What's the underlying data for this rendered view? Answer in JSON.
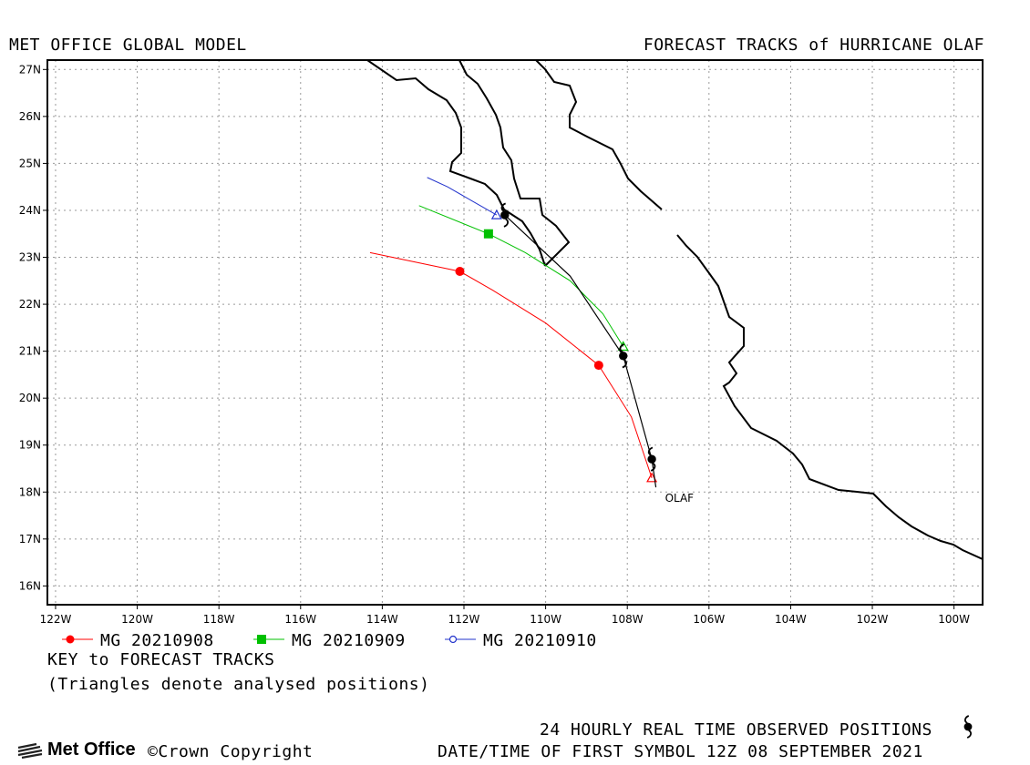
{
  "header": {
    "left_title": "MET OFFICE GLOBAL MODEL",
    "right_title": "FORECAST TRACKS of HURRICANE OLAF"
  },
  "map": {
    "lon_range": [
      -122.2,
      -99.3
    ],
    "lat_range": [
      15.6,
      27.2
    ],
    "lon_ticks": [
      -122,
      -120,
      -118,
      -116,
      -114,
      -112,
      -110,
      -108,
      -106,
      -104,
      -102,
      -100
    ],
    "lat_ticks": [
      16,
      17,
      18,
      19,
      20,
      21,
      22,
      23,
      24,
      25,
      26,
      27
    ],
    "lon_tick_labels": [
      "122W",
      "120W",
      "118W",
      "116W",
      "114W",
      "112W",
      "110W",
      "108W",
      "106W",
      "104W",
      "102W",
      "100W"
    ],
    "lat_tick_labels": [
      "16N",
      "17N",
      "18N",
      "19N",
      "20N",
      "21N",
      "22N",
      "23N",
      "24N",
      "25N",
      "26N",
      "27N"
    ],
    "grid": true,
    "storm_label": "OLAF",
    "colors": {
      "run1": "#ff0000",
      "run2": "#00c000",
      "run3": "#2233cc",
      "observed": "#000000"
    }
  },
  "chart_data": {
    "type": "line",
    "observed_track": {
      "name": "24 HOURLY REAL TIME OBSERVED POSITIONS",
      "points": [
        [
          -107.3,
          18.1
        ],
        [
          -107.4,
          18.7
        ],
        [
          -108.1,
          20.9
        ],
        [
          -109.4,
          22.6
        ],
        [
          -111.0,
          23.9
        ]
      ],
      "symbol_points": [
        [
          -107.4,
          18.7
        ],
        [
          -108.1,
          20.9
        ],
        [
          -111.0,
          23.9
        ]
      ]
    },
    "series": [
      {
        "name": "MG 20210908",
        "color": "#ff0000",
        "marker": "circle",
        "analysis": [
          -107.4,
          18.3
        ],
        "points": [
          [
            -107.4,
            18.3
          ],
          [
            -107.9,
            19.6
          ],
          [
            -108.7,
            20.7
          ],
          [
            -110.0,
            21.6
          ],
          [
            -111.3,
            22.3
          ],
          [
            -112.1,
            22.7
          ],
          [
            -114.3,
            23.1
          ]
        ],
        "daily_markers": [
          [
            -108.7,
            20.7
          ],
          [
            -112.1,
            22.7
          ]
        ]
      },
      {
        "name": "MG 20210909",
        "color": "#00c000",
        "marker": "square",
        "analysis": [
          -108.1,
          21.1
        ],
        "points": [
          [
            -108.1,
            21.1
          ],
          [
            -108.6,
            21.8
          ],
          [
            -109.4,
            22.5
          ],
          [
            -110.5,
            23.1
          ],
          [
            -111.4,
            23.5
          ],
          [
            -113.1,
            24.1
          ]
        ],
        "daily_markers": [
          [
            -111.4,
            23.5
          ]
        ]
      },
      {
        "name": "MG 20210910",
        "color": "#2233cc",
        "marker": "circle-open",
        "analysis": [
          -111.2,
          23.9
        ],
        "points": [
          [
            -111.2,
            23.9
          ],
          [
            -111.8,
            24.2
          ],
          [
            -112.4,
            24.5
          ],
          [
            -112.9,
            24.7
          ]
        ],
        "daily_markers": []
      }
    ]
  },
  "legend": {
    "items": [
      {
        "label": "MG 20210908",
        "color": "#ff0000",
        "marker": "circle"
      },
      {
        "label": "MG 20210909",
        "color": "#00c000",
        "marker": "square"
      },
      {
        "label": "MG 20210910",
        "color": "#2233cc",
        "marker": "circle-open"
      }
    ],
    "key_title": "KEY to FORECAST TRACKS",
    "key_note": "(Triangles denote analysed positions)"
  },
  "footer": {
    "logo_text": "Met Office",
    "copyright": "©Crown Copyright",
    "observed_label": "24 HOURLY REAL TIME OBSERVED POSITIONS",
    "datetime_label": "DATE/TIME OF FIRST SYMBOL 12Z 08 SEPTEMBER 2021"
  }
}
